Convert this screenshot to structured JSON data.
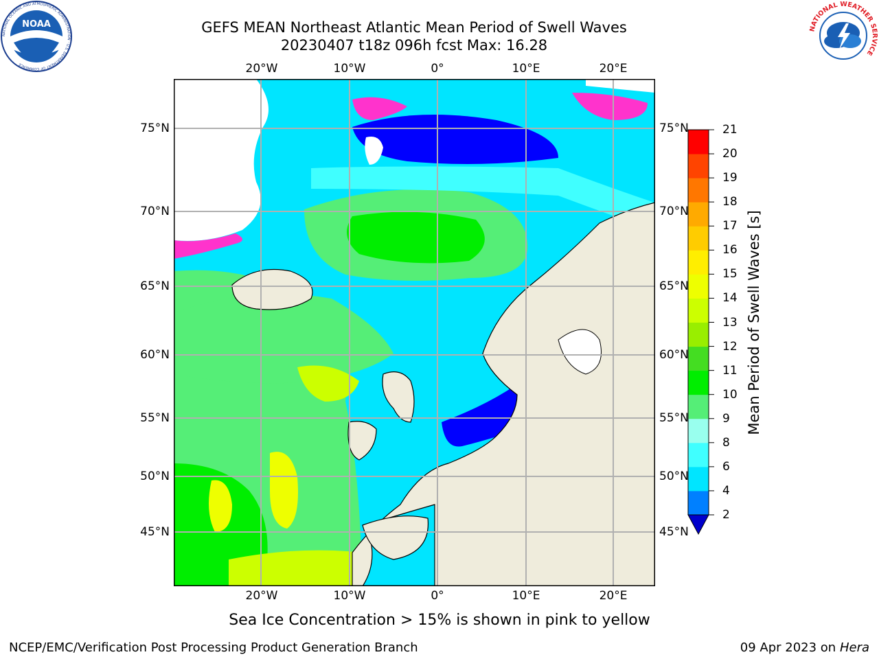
{
  "title": {
    "line1": "GEFS MEAN Northeast Atlantic Mean Period of Swell Waves",
    "line2": "20230407 t18z 096h fcst   Max: 16.28"
  },
  "logos": {
    "noaa_text": "NOAA",
    "noaa_ring": "NATIONAL OCEANIC AND ATMOSPHERIC ADMINISTRATION · U.S. DEPARTMENT OF COMMERCE",
    "nws_ring": "NATIONAL WEATHER SERVICE"
  },
  "map": {
    "region": "Northeast Atlantic",
    "lon_range": [
      -30,
      25
    ],
    "lat_range": [
      41,
      78
    ],
    "lon_labels": [
      "20°W",
      "10°W",
      "0°",
      "10°E",
      "20°E"
    ],
    "lat_labels": [
      "75°N",
      "70°N",
      "65°N",
      "60°N",
      "55°N",
      "50°N",
      "45°N"
    ],
    "land_color": "#efecdc",
    "ice_colors": [
      "#ff33cc",
      "#ffff44"
    ]
  },
  "colorbar": {
    "label": "Mean Period of Swell Waves [s]",
    "ticks": [
      "2",
      "4",
      "6",
      "8",
      "9",
      "10",
      "11",
      "12",
      "13",
      "14",
      "15",
      "16",
      "17",
      "18",
      "19",
      "20",
      "21"
    ],
    "colors": [
      "#0000ff",
      "#0080ff",
      "#00e5ff",
      "#40ffff",
      "#99ffee",
      "#55ee77",
      "#00ee00",
      "#44dd22",
      "#99ee00",
      "#ccff00",
      "#eeff00",
      "#ffee00",
      "#ffcc00",
      "#ffaa00",
      "#ff7700",
      "#ff4400",
      "#ff0000"
    ],
    "under_color": "#0000cc"
  },
  "note": "Sea Ice Concentration > 15% is shown in pink to yellow",
  "footer": {
    "left": "NCEP/EMC/Verification Post Processing Product Generation Branch",
    "date": "09 Apr 2023 on ",
    "machine": "Hera"
  }
}
